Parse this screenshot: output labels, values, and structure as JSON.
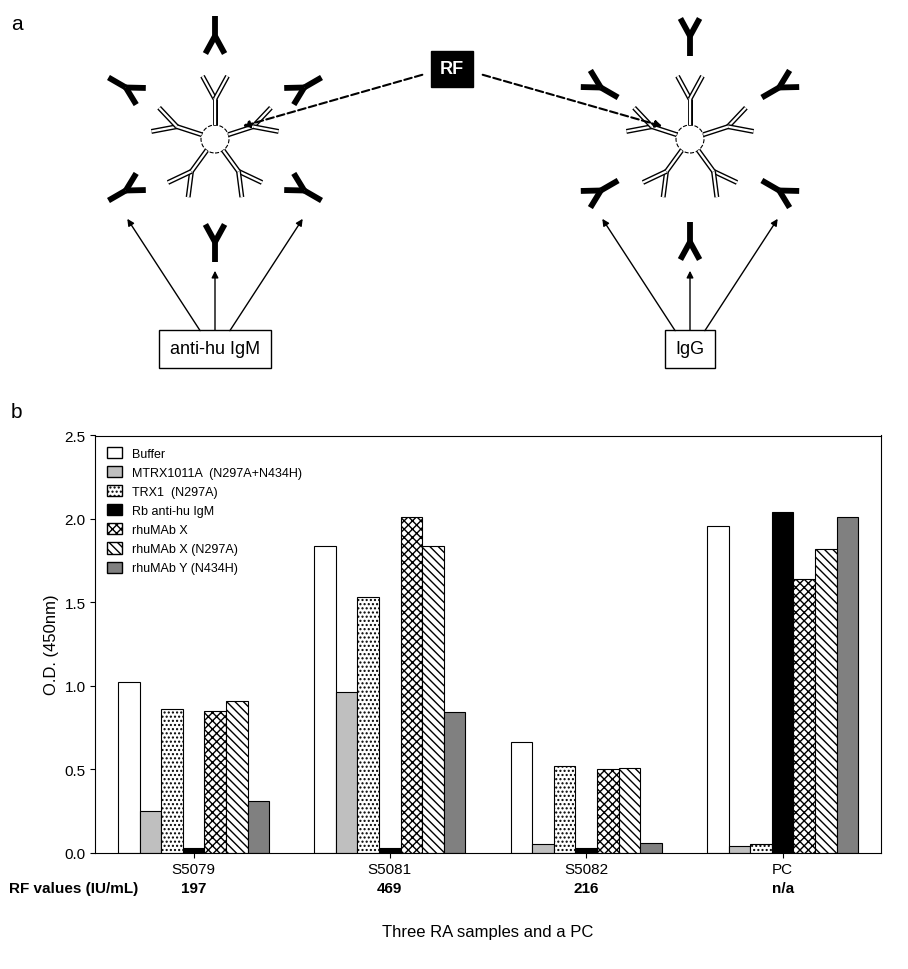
{
  "panel_labels": [
    "a",
    "b"
  ],
  "diagram": {
    "center_label": "RF",
    "left_label": "anti-hu IgM",
    "right_label": "IgG"
  },
  "chart_data": {
    "type": "bar",
    "xlabel": "Three RA samples and a PC",
    "ylabel": "O.D. (450nm)",
    "categories": [
      "S5079",
      "S5081",
      "S5082",
      "PC"
    ],
    "series": [
      {
        "name": "Buffer",
        "color": "#ffffff",
        "values": [
          1.02,
          1.84,
          0.66,
          1.96
        ]
      },
      {
        "name": "MTRX1011A  (N297A+N434H)",
        "color": "#bfbfbf",
        "values": [
          0.25,
          0.96,
          0.05,
          0.04
        ]
      },
      {
        "name": "TRX1  (N297A)",
        "color": "#ffffff",
        "values": [
          0.86,
          1.53,
          0.52,
          0.05
        ]
      },
      {
        "name": "Rb anti-hu IgM",
        "color": "#000000",
        "values": [
          0.03,
          0.03,
          0.03,
          2.04
        ]
      },
      {
        "name": "rhuMAb X",
        "color": "#ffffff",
        "values": [
          0.85,
          2.01,
          0.5,
          1.64
        ]
      },
      {
        "name": "rhuMAb X (N297A)",
        "color": "#ffffff",
        "values": [
          0.91,
          1.84,
          0.51,
          1.82
        ]
      },
      {
        "name": "rhuMAb Y (N434H)",
        "color": "#808080",
        "values": [
          0.31,
          0.84,
          0.06,
          2.01
        ]
      }
    ],
    "ylim": [
      0,
      2.5
    ],
    "yticks": [
      {
        "value": 0,
        "label": "0.0"
      },
      0.5,
      {
        "value": 1,
        "label": "1.0"
      },
      1.5,
      {
        "value": 2,
        "label": "2.0"
      },
      2.5
    ],
    "legend": "upper left",
    "row_label": "RF values (IU/mL)",
    "row_values": [
      197,
      469,
      216,
      "n/a"
    ]
  }
}
